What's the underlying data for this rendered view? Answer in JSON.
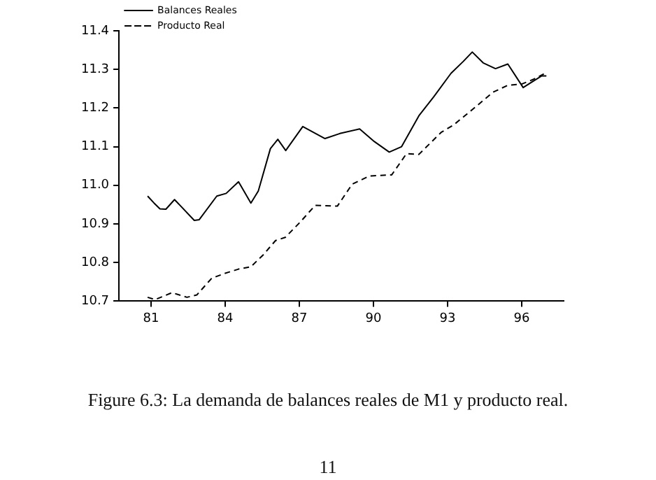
{
  "chart_data": {
    "type": "line",
    "annotations": [
      "Figure 6.3: La demanda de balances reales de M1 y producto real.",
      "11"
    ],
    "xlim": [
      79.7,
      97.7
    ],
    "xticks": [
      81,
      84,
      87,
      90,
      93,
      96
    ],
    "ylim": [
      10.7,
      11.4
    ],
    "yticks": [
      10.7,
      10.8,
      10.9,
      {
        "value": 11,
        "label": "11.0"
      },
      11.1,
      11.2,
      11.3,
      11.4
    ],
    "grid": false,
    "legend": "top left",
    "marker": "none",
    "series": [
      {
        "name": "Balances Reales",
        "color": "#000000",
        "line_style": "solid",
        "x": [
          80.86,
          81.12,
          81.36,
          81.6,
          81.95,
          82.75,
          82.95,
          83.66,
          84.04,
          84.54,
          85.04,
          85.34,
          85.83,
          86.13,
          86.45,
          87.14,
          88.04,
          88.64,
          89.44,
          90.04,
          90.64,
          91.14,
          91.84,
          92.44,
          93.14,
          93.64,
          94.0,
          94.44,
          94.94,
          95.44,
          96.06,
          96.8,
          97.0
        ],
        "values": [
          10.972,
          10.954,
          10.939,
          10.938,
          10.963,
          10.909,
          10.911,
          10.972,
          10.979,
          11.009,
          10.954,
          10.985,
          11.095,
          11.119,
          11.09,
          11.152,
          11.121,
          11.134,
          11.146,
          11.113,
          11.086,
          11.1,
          11.18,
          11.229,
          11.29,
          11.321,
          11.345,
          11.317,
          11.302,
          11.314,
          11.253,
          11.283,
          11.283
        ]
      },
      {
        "name": "Producto Real",
        "color": "#000000",
        "line_style": "dashed",
        "x": [
          80.86,
          81.16,
          81.85,
          82.45,
          82.85,
          83.45,
          83.94,
          84.54,
          85.04,
          85.54,
          86.04,
          86.43,
          87.04,
          87.64,
          88.54,
          89.14,
          89.84,
          90.74,
          91.34,
          91.84,
          92.74,
          93.24,
          94.04,
          94.84,
          95.44,
          96.0,
          96.5,
          97.0
        ],
        "values": [
          10.71,
          10.704,
          10.722,
          10.71,
          10.716,
          10.759,
          10.771,
          10.783,
          10.789,
          10.82,
          10.857,
          10.865,
          10.905,
          10.948,
          10.946,
          11.003,
          11.024,
          11.027,
          11.082,
          11.08,
          11.137,
          11.156,
          11.198,
          11.241,
          11.259,
          11.262,
          11.275,
          11.292
        ]
      }
    ]
  }
}
